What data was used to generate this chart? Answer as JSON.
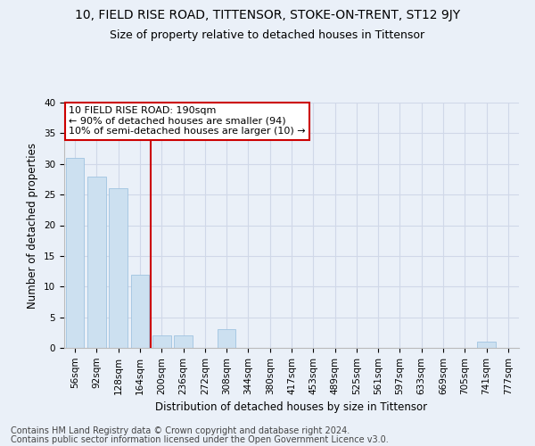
{
  "title": "10, FIELD RISE ROAD, TITTENSOR, STOKE-ON-TRENT, ST12 9JY",
  "subtitle": "Size of property relative to detached houses in Tittensor",
  "xlabel": "Distribution of detached houses by size in Tittensor",
  "ylabel": "Number of detached properties",
  "footer1": "Contains HM Land Registry data © Crown copyright and database right 2024.",
  "footer2": "Contains public sector information licensed under the Open Government Licence v3.0.",
  "categories": [
    "56sqm",
    "92sqm",
    "128sqm",
    "164sqm",
    "200sqm",
    "236sqm",
    "272sqm",
    "308sqm",
    "344sqm",
    "380sqm",
    "417sqm",
    "453sqm",
    "489sqm",
    "525sqm",
    "561sqm",
    "597sqm",
    "633sqm",
    "669sqm",
    "705sqm",
    "741sqm",
    "777sqm"
  ],
  "values": [
    31,
    28,
    26,
    12,
    2,
    2,
    0,
    3,
    0,
    0,
    0,
    0,
    0,
    0,
    0,
    0,
    0,
    0,
    0,
    1,
    0
  ],
  "bar_color": "#cce0f0",
  "bar_edge_color": "#a0c4e0",
  "grid_color": "#d0d8e8",
  "bg_color": "#eaf0f8",
  "annotation_line1": "10 FIELD RISE ROAD: 190sqm",
  "annotation_line2": "← 90% of detached houses are smaller (94)",
  "annotation_line3": "10% of semi-detached houses are larger (10) →",
  "annotation_box_color": "#ffffff",
  "annotation_box_edge": "#cc0000",
  "property_line_color": "#cc0000",
  "property_line_index": 3.5,
  "ylim": [
    0,
    40
  ],
  "yticks": [
    0,
    5,
    10,
    15,
    20,
    25,
    30,
    35,
    40
  ],
  "title_fontsize": 10,
  "subtitle_fontsize": 9,
  "axis_label_fontsize": 8.5,
  "tick_fontsize": 7.5,
  "footer_fontsize": 7,
  "annotation_fontsize": 8
}
